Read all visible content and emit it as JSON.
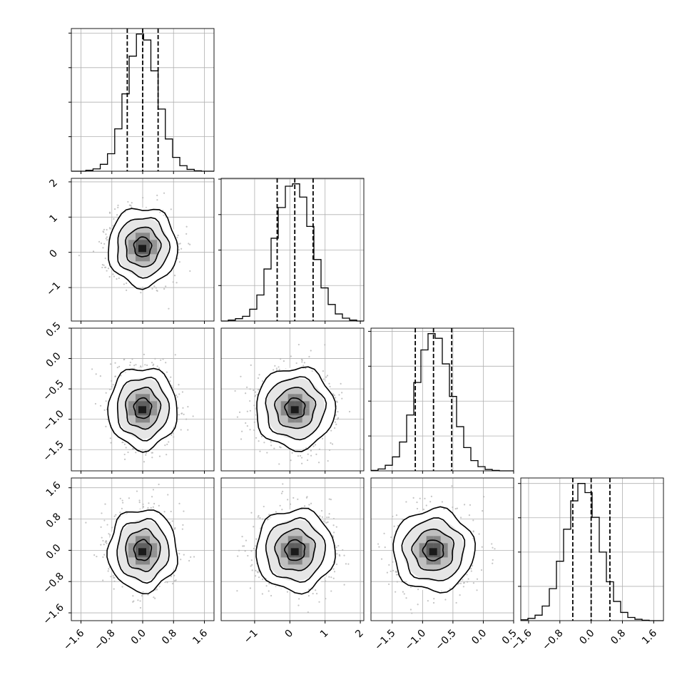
{
  "chart_data": {
    "type": "corner",
    "grid": true,
    "n_params": 4,
    "params": [
      {
        "ticks": [
          -1.6,
          -0.8,
          0.0,
          0.8,
          1.6
        ],
        "tick_labels": [
          "−1.6",
          "−0.8",
          "0.0",
          "0.8",
          "1.6"
        ],
        "range": [
          -1.85,
          1.85
        ],
        "mean": 0.0,
        "sigma": 0.4,
        "quantiles": [
          -0.4,
          0.0,
          0.4
        ],
        "hist_edges": [
          -1.85,
          -1.6625,
          -1.475,
          -1.2875,
          -1.1,
          -0.9125,
          -0.725,
          -0.5375,
          -0.35,
          -0.1625,
          0.025,
          0.2125,
          0.4,
          0.5875,
          0.775,
          0.9625,
          1.15,
          1.3375,
          1.525,
          1.7125,
          1.85
        ],
        "hist_counts": [
          0,
          0,
          2,
          5,
          15,
          38,
          92,
          168,
          250,
          298,
          285,
          218,
          135,
          70,
          30,
          12,
          4,
          1,
          0,
          0
        ]
      },
      {
        "ticks": [
          -1,
          0,
          1,
          2
        ],
        "tick_labels": [
          "−1",
          "0",
          "1",
          "2"
        ],
        "range": [
          -1.95,
          2.1
        ],
        "mean": 0.15,
        "sigma": 0.5,
        "quantiles": [
          -0.36,
          0.14,
          0.66
        ],
        "hist_edges": [
          -1.95,
          -1.7475,
          -1.545,
          -1.3425,
          -1.14,
          -0.9375,
          -0.735,
          -0.5325,
          -0.33,
          -0.1275,
          0.075,
          0.2775,
          0.48,
          0.6825,
          0.885,
          1.0875,
          1.29,
          1.4925,
          1.695,
          1.8975,
          2.1
        ],
        "hist_counts": [
          0,
          2,
          5,
          10,
          25,
          55,
          110,
          175,
          240,
          285,
          290,
          262,
          200,
          130,
          70,
          35,
          15,
          6,
          2,
          0
        ]
      },
      {
        "ticks": [
          -1.5,
          -1.0,
          -0.5,
          0.0,
          0.5
        ],
        "tick_labels": [
          "−1.5",
          "−1.0",
          "−0.5",
          "0.0",
          "0.5"
        ],
        "range": [
          -1.85,
          0.5
        ],
        "mean": -0.82,
        "sigma": 0.3,
        "quantiles": [
          -1.12,
          -0.82,
          -0.52
        ],
        "hist_edges": [
          -1.85,
          -1.7325,
          -1.615,
          -1.4975,
          -1.38,
          -1.2625,
          -1.145,
          -1.0275,
          -0.91,
          -0.7925,
          -0.675,
          -0.5575,
          -0.44,
          -0.3225,
          -0.205,
          -0.0875,
          0.03,
          0.1475,
          0.265,
          0.3825,
          0.5
        ],
        "hist_counts": [
          1,
          4,
          12,
          30,
          62,
          120,
          190,
          260,
          295,
          285,
          230,
          160,
          95,
          50,
          22,
          9,
          3,
          1,
          0,
          0
        ]
      },
      {
        "ticks": [
          -1.6,
          -0.8,
          0.0,
          0.8,
          1.6
        ],
        "tick_labels": [
          "−1.6",
          "−0.8",
          "0.0",
          "0.8",
          "1.6"
        ],
        "range": [
          -1.8,
          1.85
        ],
        "mean": 0.0,
        "sigma": 0.47,
        "quantiles": [
          -0.47,
          0.0,
          0.48
        ],
        "hist_edges": [
          -1.8,
          -1.6175,
          -1.435,
          -1.2525,
          -1.07,
          -0.8875,
          -0.705,
          -0.5225,
          -0.34,
          -0.1575,
          0.025,
          0.2075,
          0.39,
          0.5725,
          0.755,
          0.9375,
          1.12,
          1.3025,
          1.485,
          1.6675,
          1.85
        ],
        "hist_counts": [
          2,
          5,
          12,
          32,
          70,
          130,
          200,
          262,
          300,
          280,
          226,
          150,
          85,
          42,
          18,
          7,
          3,
          1,
          0,
          0
        ]
      }
    ],
    "pairs": [
      {
        "x": 0,
        "y": 1,
        "density_level": 1.0
      },
      {
        "x": 0,
        "y": 2,
        "density_level": 1.0
      },
      {
        "x": 1,
        "y": 2,
        "density_level": 0.85
      },
      {
        "x": 0,
        "y": 3,
        "density_level": 1.0
      },
      {
        "x": 1,
        "y": 3,
        "density_level": 0.9
      },
      {
        "x": 2,
        "y": 3,
        "density_level": 0.9
      }
    ],
    "contour_levels_sigma": [
      0.5,
      1.0,
      1.5,
      2.0
    ],
    "colors": {
      "line": "#000000",
      "grid": "#b0b0b0",
      "scatter": "#b5b5b5",
      "hist2d_dark": "#1a1a1a",
      "hist2d_light": "#ffffff"
    }
  }
}
